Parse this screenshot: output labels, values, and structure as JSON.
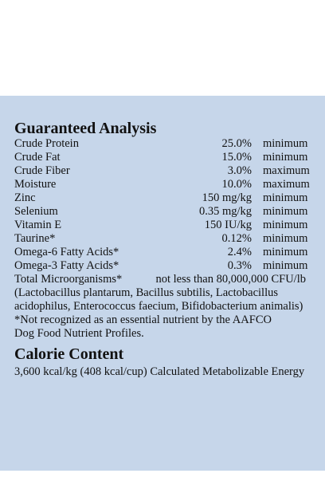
{
  "analysis": {
    "title": "Guaranteed Analysis",
    "rows": [
      {
        "name": "Crude Protein",
        "amount": "25.0%",
        "basis": "minimum"
      },
      {
        "name": "Crude Fat",
        "amount": "15.0%",
        "basis": "minimum"
      },
      {
        "name": "Crude Fiber",
        "amount": "3.0%",
        "basis": "maximum"
      },
      {
        "name": "Moisture",
        "amount": "10.0%",
        "basis": "maximum"
      },
      {
        "name": "Zinc",
        "amount": "150 mg/kg",
        "basis": "minimum"
      },
      {
        "name": "Selenium",
        "amount": "0.35 mg/kg",
        "basis": "minimum"
      },
      {
        "name": "Vitamin E",
        "amount": "150 IU/kg",
        "basis": "minimum"
      },
      {
        "name": "Taurine*",
        "amount": "0.12%",
        "basis": "minimum"
      },
      {
        "name": "Omega-6 Fatty Acids*",
        "amount": "2.4%",
        "basis": "minimum"
      },
      {
        "name": "Omega-3 Fatty Acids*",
        "amount": "0.3%",
        "basis": "minimum"
      }
    ],
    "microorganisms": {
      "name": "Total Microorganisms*",
      "amount": "not less than 80,000,000 CFU/lb",
      "detail": [
        "(Lactobacillus plantarum, Bacillus subtilis, Lactobacillus",
        "acidophilus, Enterococcus faecium, Bifidobacterium animalis)"
      ]
    },
    "footnote": [
      "*Not recognized as an essential nutrient by the AAFCO",
      "Dog Food Nutrient Profiles."
    ]
  },
  "calorie": {
    "title": "Calorie Content",
    "text": "3,600 kcal/kg (408 kcal/cup) Calculated Metabolizable Energy"
  }
}
